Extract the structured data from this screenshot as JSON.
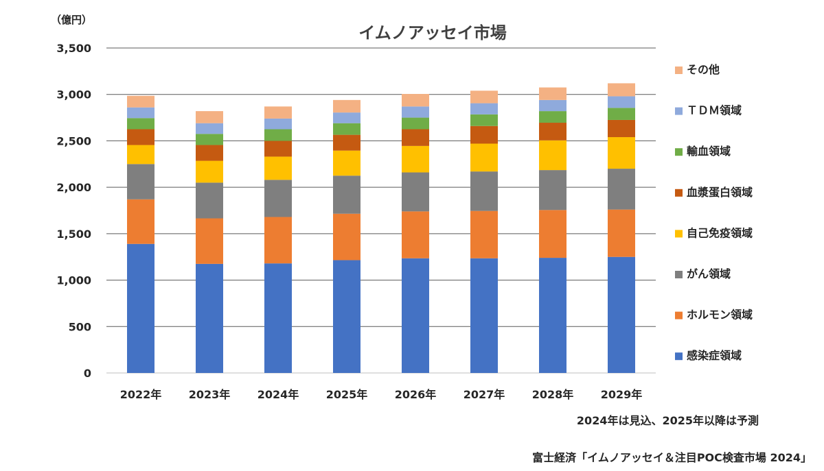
{
  "chart_data": {
    "type": "bar",
    "stacked": true,
    "title": "イムノアッセイ市場",
    "unit_label": "（億円）",
    "ylim": [
      0,
      3500
    ],
    "yticks": [
      0,
      500,
      1000,
      1500,
      2000,
      2500,
      3000,
      3500
    ],
    "ytick_labels": [
      "0",
      "500",
      "1,000",
      "1,500",
      "2,000",
      "2,500",
      "3,000",
      "3,500"
    ],
    "grid": true,
    "legend_position": "right",
    "categories": [
      "2022年",
      "2023年",
      "2024年",
      "2025年",
      "2026年",
      "2027年",
      "2028年",
      "2029年"
    ],
    "series": [
      {
        "name": "感染症領域",
        "color": "#4472C4",
        "values": [
          1390,
          1175,
          1180,
          1215,
          1235,
          1235,
          1240,
          1250
        ]
      },
      {
        "name": "ホルモン領域",
        "color": "#ED7D31",
        "values": [
          480,
          490,
          500,
          500,
          505,
          510,
          515,
          510
        ]
      },
      {
        "name": "がん領域",
        "color": "#7F7F7F",
        "values": [
          380,
          385,
          400,
          410,
          420,
          425,
          430,
          440
        ]
      },
      {
        "name": "自己免疫領域",
        "color": "#FFC000",
        "values": [
          205,
          235,
          250,
          270,
          285,
          300,
          320,
          340
        ]
      },
      {
        "name": "血漿蛋白領域",
        "color": "#C55A11",
        "values": [
          170,
          170,
          170,
          170,
          180,
          190,
          190,
          185
        ]
      },
      {
        "name": "輸血領域",
        "color": "#70AD47",
        "values": [
          120,
          120,
          125,
          125,
          125,
          125,
          125,
          130
        ]
      },
      {
        "name": "ＴＤＭ領域",
        "color": "#8FAADC",
        "values": [
          115,
          115,
          115,
          115,
          120,
          120,
          120,
          125
        ]
      },
      {
        "name": "その他",
        "color": "#F4B183",
        "values": [
          125,
          130,
          130,
          135,
          135,
          135,
          135,
          140
        ]
      }
    ],
    "annotations": [
      "2024年は見込、2025年以降は予測"
    ]
  },
  "source": "富士経済「イムノアッセイ＆注目POC検査市場 2024」"
}
